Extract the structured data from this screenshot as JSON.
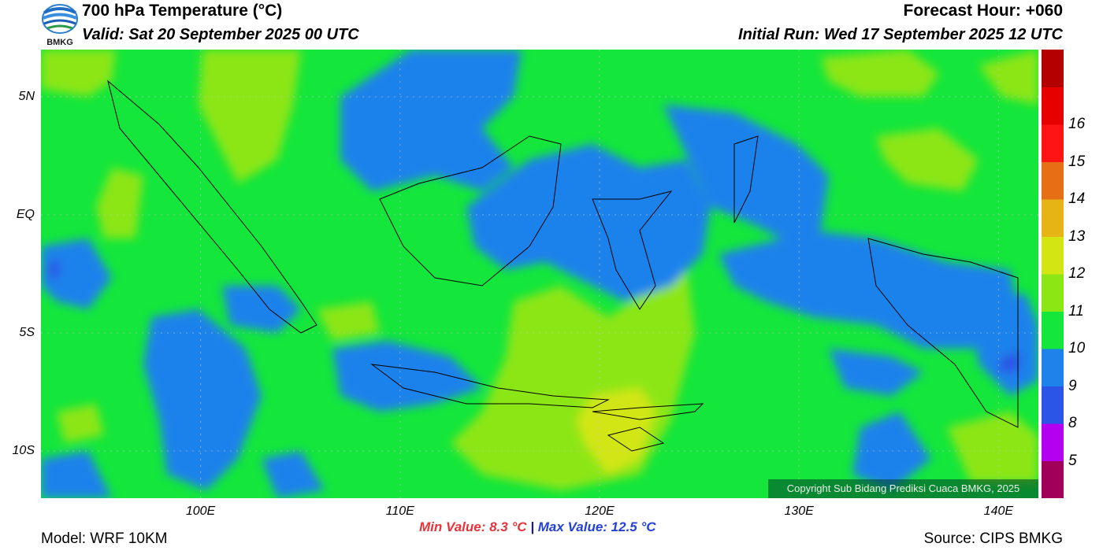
{
  "header": {
    "title": "700 hPa Temperature (°C)",
    "valid": "Valid: Sat 20 September 2025 00 UTC",
    "forecast_hour": "Forecast Hour: +060",
    "initial_run": "Initial Run: Wed 17 September 2025 12 UTC"
  },
  "logo": {
    "text": "BMKG",
    "icon": "bmkg-logo-icon"
  },
  "map": {
    "lat_labels": [
      {
        "label": "5N",
        "lat": 5
      },
      {
        "label": "EQ",
        "lat": 0
      },
      {
        "label": "5S",
        "lat": -5
      },
      {
        "label": "10S",
        "lat": -10
      }
    ],
    "lon_labels": [
      {
        "label": "100E",
        "lon": 100
      },
      {
        "label": "110E",
        "lon": 110
      },
      {
        "label": "120E",
        "lon": 120
      },
      {
        "label": "130E",
        "lon": 130
      },
      {
        "label": "140E",
        "lon": 140
      }
    ],
    "lon_range": [
      92,
      142
    ],
    "lat_range": [
      -12,
      7
    ],
    "copyright": "Copyright Sub Bidang Prediksi Cuaca BMKG, 2025"
  },
  "colorbar": {
    "labels": [
      "5",
      "8",
      "9",
      "10",
      "11",
      "12",
      "13",
      "14",
      "15",
      "16"
    ],
    "colors": [
      "#a0005a",
      "#b400f0",
      "#2a55e6",
      "#1e82eb",
      "#14e63c",
      "#8ce614",
      "#d2e614",
      "#e6b414",
      "#e66e14",
      "#ff1414",
      "#e60000",
      "#b40000"
    ]
  },
  "footer": {
    "model": "Model: WRF 10KM",
    "min_value": "Min Value: 8.3 °C",
    "separator": "|",
    "max_value": "Max Value: 12.5 °C",
    "source": "Source: CIPS BMKG"
  }
}
